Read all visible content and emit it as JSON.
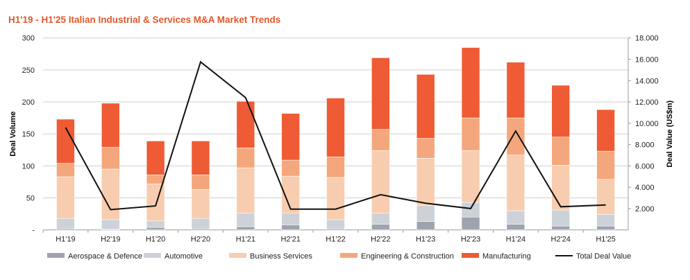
{
  "chart_data": {
    "type": "bar",
    "stacked": true,
    "title": "H1'19 - H1'25  Italian Industrial & Services M&A Market Trends",
    "ylabel": "Deal Volume",
    "y2label": "Deal Value (US$m)",
    "xlabel": "",
    "ylim": [
      0,
      300
    ],
    "y2lim": [
      0,
      18000
    ],
    "yticks": [
      "-",
      "50",
      "100",
      "150",
      "200",
      "250",
      "300"
    ],
    "y2ticks": [
      "2.000",
      "4.000",
      "6.000",
      "8.000",
      "10.000",
      "12.000",
      "14.000",
      "16.000",
      "18.000"
    ],
    "grid": true,
    "legend_position": "bottom",
    "categories": [
      "H1'19",
      "H2'19",
      "H1'20",
      "H2'20",
      "H1'21",
      "H2'21",
      "H1'22",
      "H2'22",
      "H1'23",
      "H2'23",
      "H1'24",
      "H2'24",
      "H1'25"
    ],
    "series": [
      {
        "name": "Aerospace & Defence",
        "type": "bar",
        "color": "#9ea3ae",
        "values": [
          2,
          1,
          4,
          2,
          5,
          8,
          2,
          9,
          13,
          20,
          9,
          6,
          6
        ]
      },
      {
        "name": "Automotive",
        "type": "bar",
        "color": "#cdd1d8",
        "values": [
          16,
          15,
          10,
          16,
          21,
          18,
          14,
          17,
          25,
          23,
          21,
          25,
          18
        ]
      },
      {
        "name": "Business Services",
        "type": "bar",
        "color": "#f8ccae",
        "values": [
          65,
          79,
          58,
          45,
          71,
          58,
          66,
          98,
          74,
          81,
          87,
          70,
          55
        ]
      },
      {
        "name": "Engineering & Construction",
        "type": "bar",
        "color": "#f4a77c",
        "values": [
          21,
          34,
          14,
          23,
          31,
          25,
          32,
          33,
          31,
          51,
          58,
          44,
          44
        ]
      },
      {
        "name": "Manufacturing",
        "type": "bar",
        "color": "#ee5b34",
        "values": [
          69,
          69,
          53,
          53,
          73,
          73,
          92,
          112,
          100,
          110,
          87,
          81,
          65
        ]
      },
      {
        "name": "Total Deal Value",
        "type": "line",
        "axis": "right",
        "color": "#111111",
        "values": [
          9600,
          1900,
          2250,
          15750,
          12400,
          1950,
          1950,
          3300,
          2500,
          2000,
          9270,
          2170,
          2340
        ]
      }
    ]
  }
}
